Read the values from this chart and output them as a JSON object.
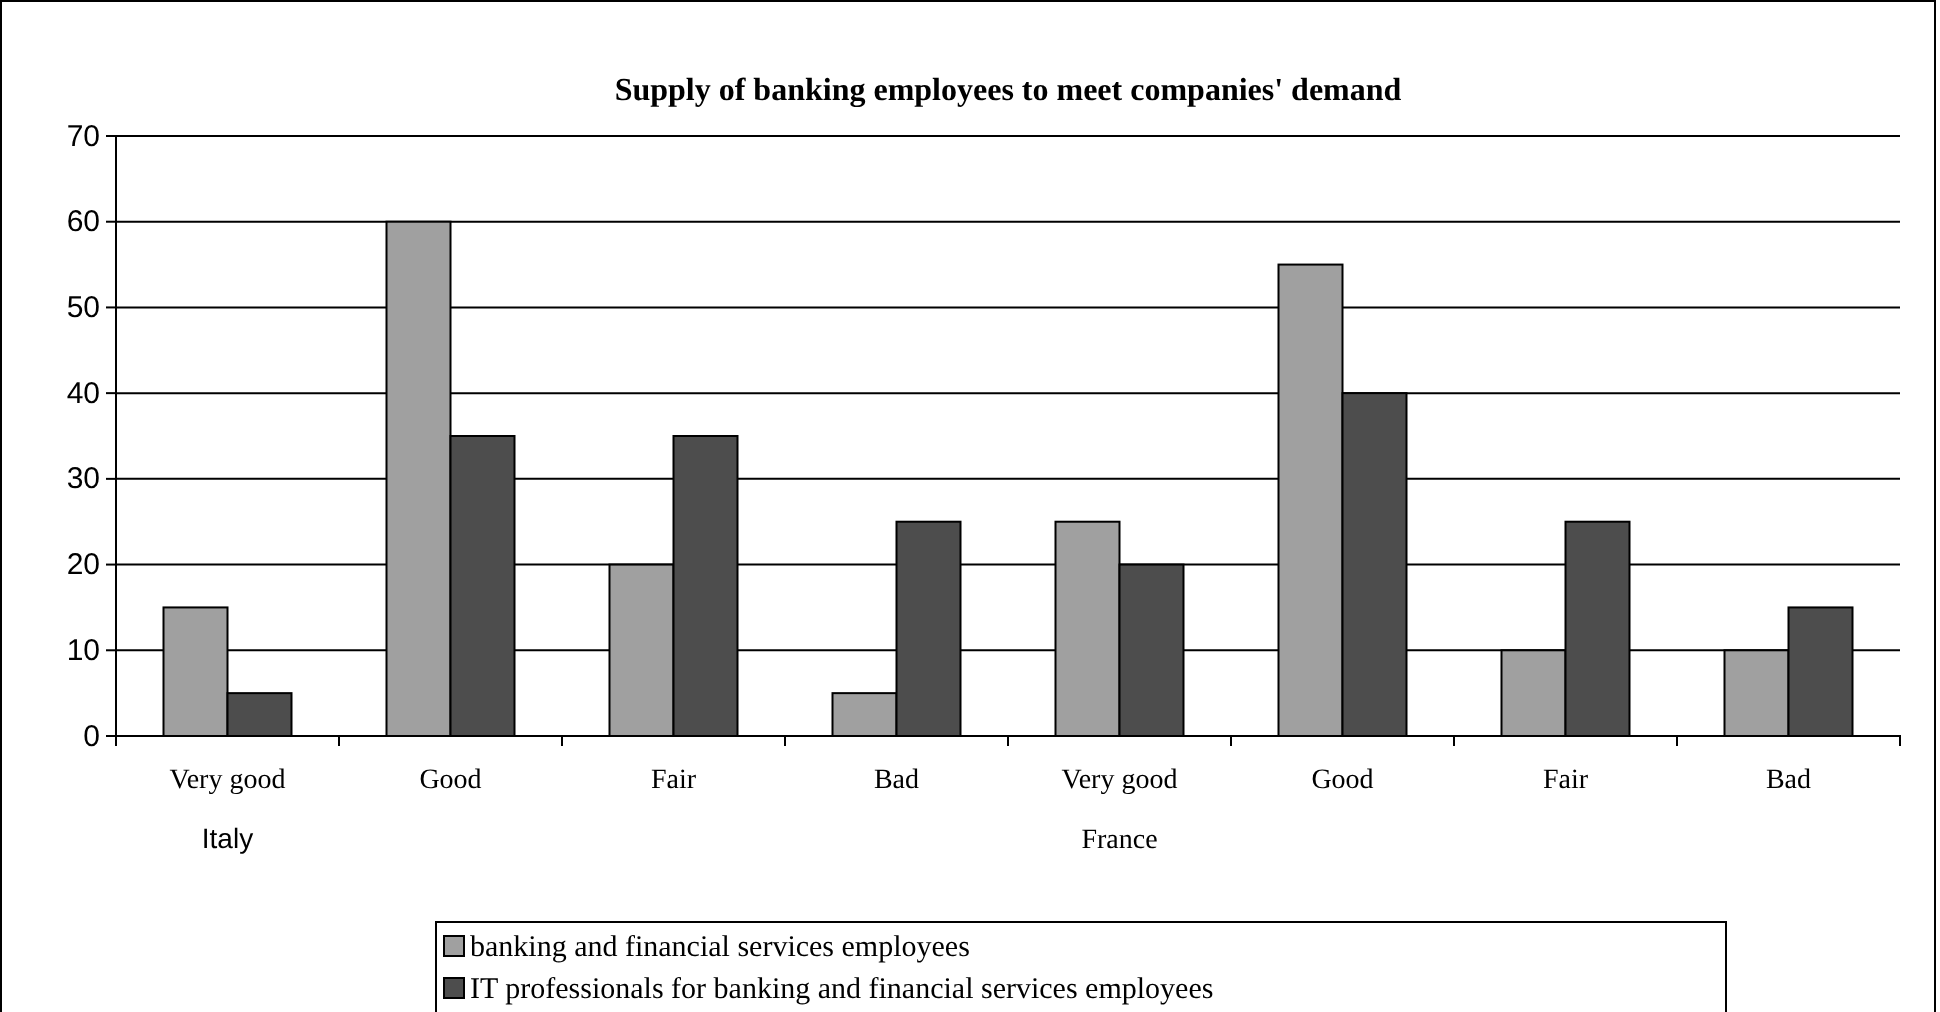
{
  "chart_data": {
    "type": "bar",
    "title": "Supply of banking employees to meet companies' demand",
    "categories": [
      "Very good",
      "Good",
      "Fair",
      "Bad",
      "Very good",
      "Good",
      "Fair",
      "Bad"
    ],
    "series": [
      {
        "name": "banking and financial services employees",
        "color": "#a0a0a0",
        "values": [
          15,
          60,
          20,
          5,
          25,
          55,
          10,
          10
        ]
      },
      {
        "name": "IT professionals for banking and financial services employees",
        "color": "#4d4d4d",
        "values": [
          5,
          35,
          35,
          25,
          20,
          40,
          25,
          15
        ]
      }
    ],
    "annotations": [
      "Italy",
      "France"
    ],
    "ylim": [
      0,
      70
    ],
    "yticks": [
      0,
      10,
      20,
      30,
      40,
      50,
      60,
      70
    ],
    "grid": "y",
    "legend": "bottom"
  }
}
